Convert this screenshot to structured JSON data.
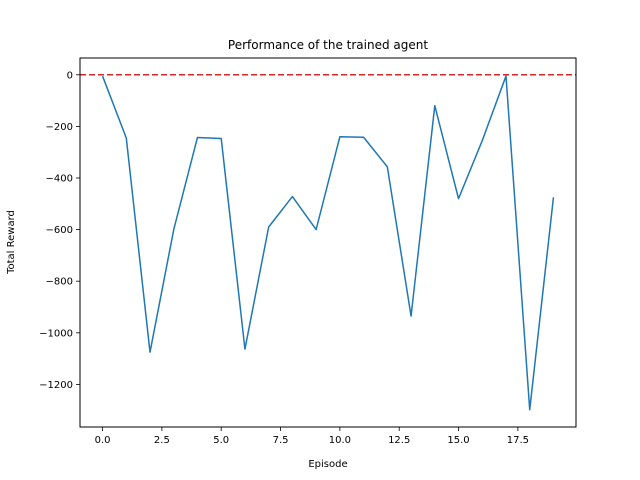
{
  "chart_data": {
    "type": "line",
    "title": "Performance of the trained agent",
    "xlabel": "Episode",
    "ylabel": "Total Reward",
    "xlim": [
      -0.95,
      19.95
    ],
    "ylim": [
      -1365,
      65
    ],
    "xticks": [
      0.0,
      2.5,
      5.0,
      7.5,
      10.0,
      12.5,
      15.0,
      17.5
    ],
    "xtick_labels": [
      "0.0",
      "2.5",
      "5.0",
      "7.5",
      "10.0",
      "12.5",
      "15.0",
      "17.5"
    ],
    "yticks": [
      0,
      -200,
      -400,
      -600,
      -800,
      -1000,
      -1200
    ],
    "ytick_labels": [
      "0",
      "−200",
      "−400",
      "−600",
      "−800",
      "−1000",
      "−1200"
    ],
    "grid": false,
    "series": [
      {
        "x": [
          0,
          1,
          2,
          3,
          4,
          5,
          6,
          7,
          8,
          9,
          10,
          11,
          12,
          13,
          14,
          15,
          16,
          17,
          18,
          19
        ],
        "values": [
          -5,
          -245,
          -1075,
          -600,
          -243,
          -247,
          -1063,
          -590,
          -472,
          -600,
          -240,
          -242,
          -357,
          -935,
          -120,
          -480,
          -255,
          -5,
          -1298,
          -475
        ],
        "color": "#1f77b4"
      }
    ],
    "reference_line": {
      "y": 0,
      "color": "#d62728",
      "style": "dashed"
    }
  }
}
